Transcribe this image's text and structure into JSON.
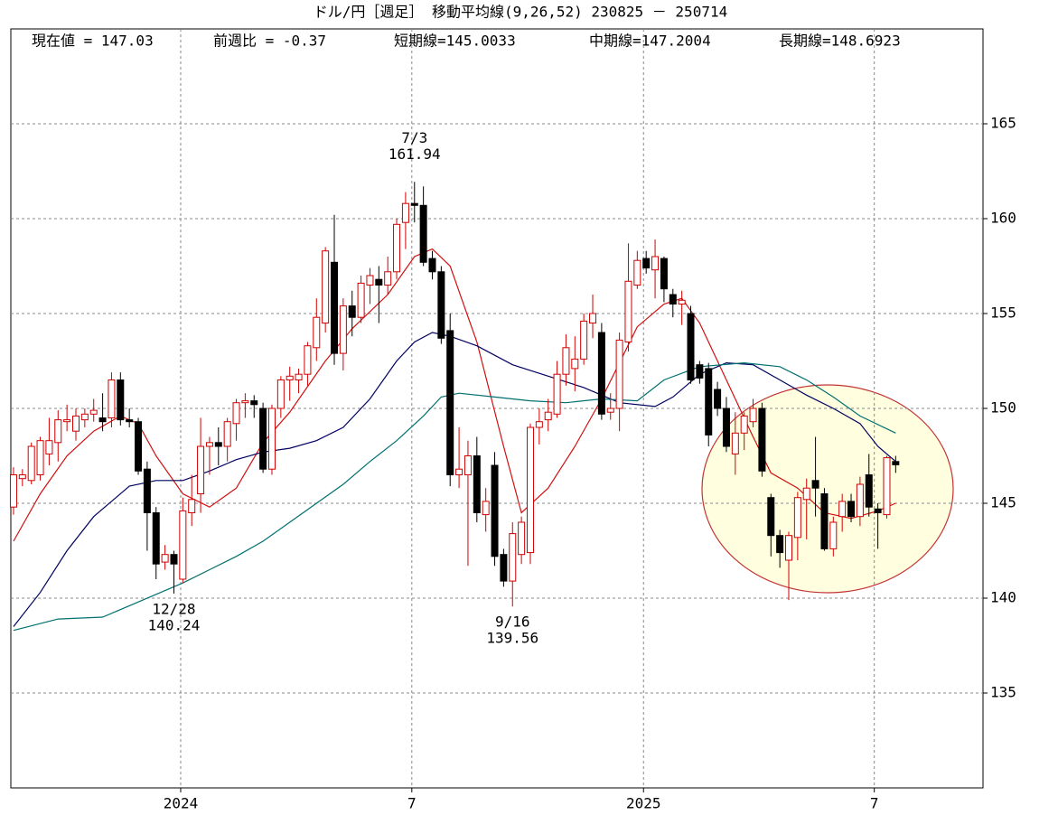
{
  "chart_data": {
    "type": "candlestick",
    "title": "ドル/円［週足］ 移動平均線(9,26,52)  230825 － 250714",
    "info": [
      "現在値 = 147.03",
      "前週比 = -0.37",
      "短期線=145.0033",
      "中期線=147.2004",
      "長期線=148.6923"
    ],
    "open": [
      144.8,
      146.3,
      146.2,
      146.5,
      147.6,
      148.2,
      149.3,
      148.8,
      149.4,
      149.7,
      149.5,
      149.5,
      151.5,
      149.4,
      149.3,
      146.8,
      144.5,
      141.9,
      142.3,
      141,
      144.5,
      145.5,
      148,
      148.2,
      148,
      149.2,
      150.3,
      150.4,
      150,
      146.8,
      150,
      151.5,
      151.5,
      151.8,
      153.2,
      154.5,
      157.7,
      152.9,
      155.4,
      154.8,
      156.5,
      156.8,
      156.5,
      157.2,
      159.8,
      160.8,
      160.7,
      157.9,
      157.2,
      154.1,
      146.5,
      146.5,
      147.5,
      144.4,
      147,
      142.3,
      140.9,
      142.3,
      142.4,
      149,
      149.4,
      149.7,
      151.8,
      152.1,
      152.6,
      154.5,
      154,
      149.8,
      150,
      153.5,
      156.5,
      157.9,
      157.3,
      157.9,
      156,
      155.5,
      155,
      152.3,
      152.1,
      151,
      150,
      147.6,
      148.7,
      149.3,
      150,
      145.3,
      143.3,
      142,
      143.2,
      145.2,
      146.2,
      145.5,
      142.6,
      144.3,
      145.1,
      144.3,
      146.5,
      144.7,
      144.4,
      147.2
    ],
    "high": [
      146.9,
      146.8,
      148.2,
      148.5,
      149.5,
      149.9,
      150.2,
      150,
      150,
      150.5,
      150.8,
      151.9,
      151.9,
      150,
      149.5,
      147.2,
      144.8,
      142.8,
      142.5,
      145.3,
      146.5,
      149.5,
      148.5,
      149,
      149.5,
      150.5,
      150.8,
      150.7,
      150.3,
      150.2,
      151.7,
      152.2,
      152.1,
      153.5,
      155.8,
      158.5,
      160.2,
      155.8,
      156.2,
      157,
      157.4,
      157.5,
      158,
      160,
      161.4,
      161.94,
      161.7,
      158.3,
      157.5,
      155,
      149,
      148.3,
      148.5,
      145.8,
      147.7,
      142.6,
      144,
      144.3,
      149.2,
      150,
      150.5,
      152.5,
      153.9,
      153.8,
      155,
      156,
      154.5,
      150.8,
      154,
      158.7,
      158.3,
      158.3,
      158.9,
      158,
      156.3,
      156.2,
      155.4,
      152.5,
      152.4,
      151.4,
      150.6,
      149.8,
      149.8,
      150.5,
      150.3,
      145.5,
      143.6,
      143.5,
      145.6,
      146.3,
      148.5,
      145.8,
      144.3,
      145.5,
      145.5,
      146.4,
      147.6,
      145,
      147.5,
      147.5
    ],
    "low": [
      144.4,
      145.9,
      146,
      146.2,
      147,
      147.2,
      148.8,
      148.3,
      149,
      149.3,
      148.8,
      149,
      149.1,
      149,
      146.5,
      142.5,
      141,
      141.5,
      140.24,
      140.8,
      143.8,
      144.5,
      146.5,
      147,
      147.2,
      148.3,
      149.5,
      149.5,
      146.6,
      146.5,
      149.5,
      150.4,
      150.8,
      151.2,
      152.5,
      154,
      152.3,
      152,
      153.8,
      154.5,
      155.5,
      154.5,
      156,
      156.8,
      158.4,
      159.8,
      157.5,
      156.8,
      153.4,
      145.9,
      145.8,
      141.7,
      144,
      143.5,
      141.7,
      140.6,
      139.56,
      141.8,
      141.8,
      148.1,
      148.8,
      149.5,
      151.2,
      150.9,
      152.3,
      153.7,
      149.4,
      149.4,
      148.8,
      153,
      156.3,
      157.1,
      155.8,
      155.6,
      154.8,
      154.4,
      151.3,
      151.3,
      148,
      149.6,
      147.7,
      146.5,
      147.8,
      149,
      146.4,
      142.2,
      141.6,
      139.9,
      142,
      143.1,
      144.3,
      142.5,
      142.2,
      143.5,
      144,
      143.8,
      144.3,
      142.6,
      144.2,
      146.6
    ],
    "close": [
      146.5,
      146.5,
      148,
      148.3,
      148.3,
      149.4,
      149.4,
      149.6,
      149.7,
      149.9,
      149.3,
      151.5,
      149.4,
      149.3,
      146.7,
      144.5,
      141.8,
      142.3,
      141.8,
      144.6,
      145.2,
      148,
      148.2,
      148,
      149.3,
      150.3,
      150.4,
      150.2,
      146.8,
      150,
      151.5,
      151.7,
      151.8,
      153.3,
      154.8,
      158.3,
      152.9,
      155.4,
      154.8,
      156.6,
      157,
      156.5,
      157.2,
      159.7,
      160.8,
      160.7,
      157.7,
      157.2,
      153.7,
      146.5,
      146.8,
      147.5,
      144.5,
      145.1,
      142.2,
      140.9,
      143.4,
      144,
      149,
      149.3,
      149.8,
      151.8,
      153.2,
      152.6,
      154.6,
      155,
      149.7,
      150,
      153.6,
      156.7,
      157.8,
      157.4,
      158,
      156.3,
      155.5,
      155.7,
      151.5,
      151.6,
      148.6,
      150,
      148,
      148.7,
      149.6,
      150,
      146.7,
      143.3,
      142.4,
      143.3,
      145.3,
      145.8,
      145.8,
      142.6,
      144,
      145.1,
      144.3,
      146,
      144.8,
      144.5,
      147.4,
      147.03
    ],
    "up_color": "#d00000",
    "down_color": "#000000",
    "series": [
      {
        "color": "#d01010",
        "x": [
          0,
          3,
          6,
          9,
          12,
          14,
          16,
          19,
          22,
          25,
          28,
          31,
          35,
          38,
          42,
          45,
          47,
          49,
          52,
          55,
          57,
          60,
          63,
          66,
          70,
          73,
          75,
          77,
          80,
          83,
          85,
          88,
          91,
          94,
          97,
          99
        ],
        "values": [
          143,
          145.5,
          147.5,
          148.8,
          149.6,
          149.2,
          147.5,
          145.5,
          144.8,
          145.8,
          148.2,
          149.8,
          152.5,
          154.2,
          156,
          158,
          158.4,
          157.5,
          153.5,
          148,
          144.5,
          145.8,
          148,
          150.5,
          154.3,
          155.5,
          155.8,
          154.5,
          151.5,
          148.5,
          146.6,
          145.8,
          144.5,
          144.2,
          144.6,
          145
        ]
      },
      {
        "color": "#000060",
        "x": [
          0,
          3,
          6,
          9,
          13,
          16,
          19,
          22,
          25,
          28,
          31,
          34,
          37,
          40,
          43,
          45,
          47,
          49,
          52,
          56,
          60,
          64,
          68,
          72,
          74,
          77,
          80,
          83,
          86,
          89,
          92,
          95,
          97,
          99
        ],
        "values": [
          138.5,
          140.3,
          142.5,
          144.3,
          145.9,
          146.2,
          146.2,
          146.7,
          147.3,
          147.7,
          147.9,
          148.3,
          149,
          150.5,
          152.5,
          153.5,
          154,
          153.8,
          153.3,
          152.3,
          151.7,
          151.1,
          150.3,
          150.1,
          150.6,
          151.8,
          152.4,
          152.3,
          151.5,
          150.7,
          150,
          149.2,
          148,
          147.2
        ]
      },
      {
        "color": "#007070",
        "x": [
          0,
          5,
          10,
          13,
          16,
          19,
          22,
          25,
          28,
          31,
          34,
          37,
          40,
          43,
          46,
          48,
          50,
          54,
          58,
          62,
          66,
          70,
          73,
          77,
          82,
          86,
          89,
          92,
          95,
          99
        ],
        "values": [
          138.3,
          138.9,
          139,
          139.6,
          140.2,
          140.8,
          141.5,
          142.2,
          143,
          144,
          145,
          146,
          147.2,
          148.3,
          149.6,
          150.6,
          150.8,
          150.6,
          150.4,
          150.3,
          150.5,
          150.4,
          151.5,
          152.2,
          152.4,
          152.2,
          151.5,
          150.6,
          149.6,
          148.7
        ]
      }
    ],
    "annotations": [
      {
        "label": "7/3",
        "value": 161.94
      },
      {
        "label": "12/28",
        "value": 140.24
      },
      {
        "label": "9/16",
        "value": 139.56
      }
    ],
    "xlim": [
      -0.3,
      108.8
    ],
    "xticks": [
      {
        "value": 18.76,
        "label": "2024"
      },
      {
        "value": 44.7,
        "label": "7"
      },
      {
        "value": 70.7,
        "label": "2025"
      },
      {
        "value": 96.6,
        "label": "7"
      }
    ],
    "ylim": [
      130,
      170
    ],
    "yticks": [
      135,
      140,
      145,
      150,
      155,
      160,
      165
    ],
    "grid": true
  }
}
